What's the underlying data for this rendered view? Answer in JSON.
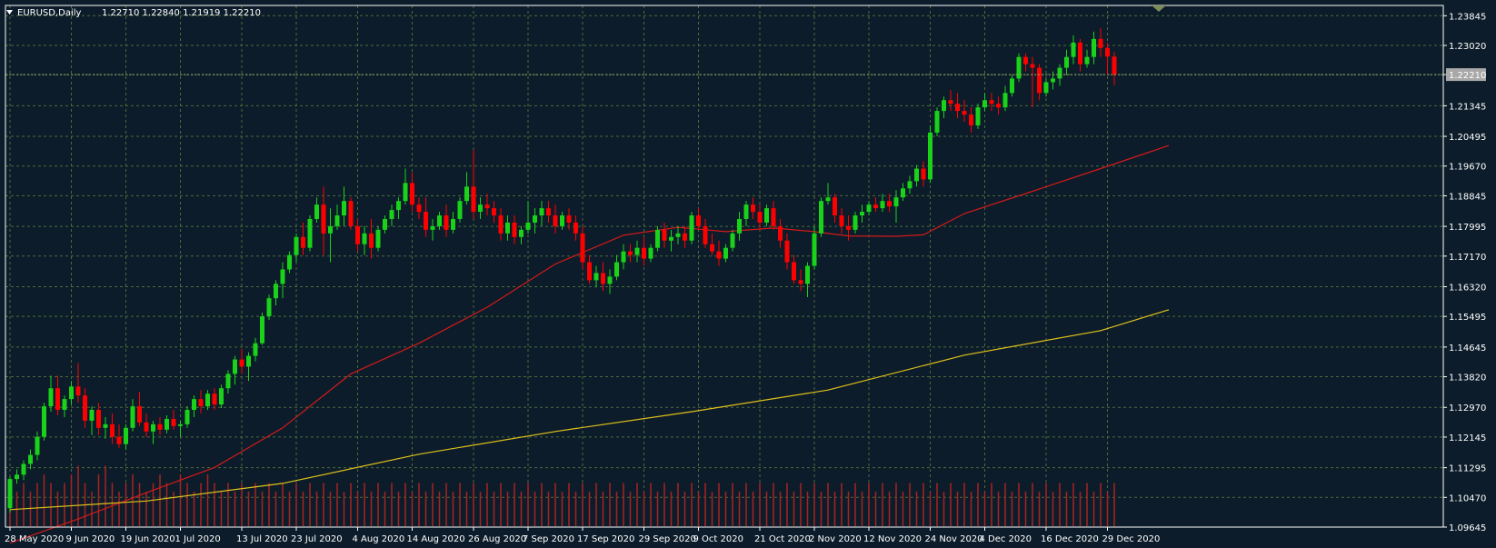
{
  "header": {
    "symbol": "EURUSD,Daily",
    "ohlc": "1.22710 1.22840 1.21919 1.22210"
  },
  "colors": {
    "background": "#0c1c2a",
    "grid": "#4e6b3a",
    "bull_candle": "#19d219",
    "bear_candle": "#ff0000",
    "volume": "#a8231f",
    "ma_short": "#d41a1a",
    "ma_long": "#e0c21a",
    "price_label_bg": "#a8a8a8",
    "price_label_text": "#000000",
    "text": "#ffffff"
  },
  "chart_data": {
    "type": "candlestick",
    "symbol": "EURUSD",
    "timeframe": "Daily",
    "last_price": "1.22210",
    "ylim": [
      1.09645,
      1.2413
    ],
    "y_ticks": [
      "1.23845",
      "1.23020",
      "1.22210",
      "1.21345",
      "1.20495",
      "1.19670",
      "1.18845",
      "1.17995",
      "1.17170",
      "1.16320",
      "1.15495",
      "1.14645",
      "1.13820",
      "1.12970",
      "1.12145",
      "1.11295",
      "1.10470",
      "1.09645"
    ],
    "x_ticks": [
      "28 May 2020",
      "9 Jun 2020",
      "19 Jun 2020",
      "1 Jul 2020",
      "13 Jul 2020",
      "23 Jul 2020",
      "4 Aug 2020",
      "14 Aug 2020",
      "26 Aug 2020",
      "7 Sep 2020",
      "17 Sep 2020",
      "29 Sep 2020",
      "9 Oct 2020",
      "21 Oct 2020",
      "2 Nov 2020",
      "12 Nov 2020",
      "24 Nov 2020",
      "4 Dec 2020",
      "16 Dec 2020",
      "29 Dec 2020"
    ],
    "x_tick_index": [
      0,
      9,
      17,
      25,
      34,
      42,
      51,
      59,
      68,
      76,
      84,
      93,
      101,
      110,
      118,
      126,
      135,
      143,
      152,
      161
    ],
    "ohlc": [
      [
        1.1017,
        1.1105,
        1.1005,
        1.1098
      ],
      [
        1.1098,
        1.1125,
        1.1085,
        1.111
      ],
      [
        1.111,
        1.115,
        1.1095,
        1.114
      ],
      [
        1.114,
        1.118,
        1.1125,
        1.1165
      ],
      [
        1.1165,
        1.123,
        1.115,
        1.1215
      ],
      [
        1.1215,
        1.131,
        1.1205,
        1.13
      ],
      [
        1.13,
        1.1385,
        1.1285,
        1.135
      ],
      [
        1.135,
        1.1385,
        1.1275,
        1.129
      ],
      [
        1.129,
        1.133,
        1.127,
        1.132
      ],
      [
        1.132,
        1.137,
        1.1305,
        1.1355
      ],
      [
        1.1355,
        1.142,
        1.131,
        1.133
      ],
      [
        1.133,
        1.135,
        1.124,
        1.126
      ],
      [
        1.126,
        1.13,
        1.122,
        1.129
      ],
      [
        1.129,
        1.131,
        1.122,
        1.124
      ],
      [
        1.124,
        1.127,
        1.121,
        1.125
      ],
      [
        1.125,
        1.128,
        1.1195,
        1.1215
      ],
      [
        1.1215,
        1.125,
        1.1185,
        1.1195
      ],
      [
        1.1195,
        1.125,
        1.118,
        1.124
      ],
      [
        1.124,
        1.132,
        1.123,
        1.13
      ],
      [
        1.13,
        1.134,
        1.1245,
        1.1255
      ],
      [
        1.1255,
        1.128,
        1.1215,
        1.123
      ],
      [
        1.123,
        1.126,
        1.1195,
        1.125
      ],
      [
        1.125,
        1.127,
        1.122,
        1.1235
      ],
      [
        1.1235,
        1.1275,
        1.1225,
        1.1265
      ],
      [
        1.1265,
        1.129,
        1.1235,
        1.1245
      ],
      [
        1.1245,
        1.126,
        1.1215,
        1.125
      ],
      [
        1.125,
        1.13,
        1.124,
        1.129
      ],
      [
        1.129,
        1.133,
        1.127,
        1.132
      ],
      [
        1.132,
        1.1345,
        1.128,
        1.13
      ],
      [
        1.13,
        1.1345,
        1.129,
        1.1335
      ],
      [
        1.1335,
        1.135,
        1.129,
        1.1305
      ],
      [
        1.1305,
        1.136,
        1.1295,
        1.135
      ],
      [
        1.135,
        1.14,
        1.1335,
        1.139
      ],
      [
        1.139,
        1.144,
        1.136,
        1.143
      ],
      [
        1.143,
        1.146,
        1.139,
        1.141
      ],
      [
        1.141,
        1.145,
        1.137,
        1.144
      ],
      [
        1.144,
        1.149,
        1.1425,
        1.1475
      ],
      [
        1.1475,
        1.156,
        1.147,
        1.155
      ],
      [
        1.155,
        1.161,
        1.154,
        1.16
      ],
      [
        1.16,
        1.165,
        1.158,
        1.164
      ],
      [
        1.164,
        1.17,
        1.16,
        1.168
      ],
      [
        1.168,
        1.173,
        1.167,
        1.172
      ],
      [
        1.172,
        1.178,
        1.17,
        1.177
      ],
      [
        1.177,
        1.181,
        1.172,
        1.174
      ],
      [
        1.174,
        1.183,
        1.173,
        1.182
      ],
      [
        1.182,
        1.188,
        1.181,
        1.186
      ],
      [
        1.186,
        1.191,
        1.172,
        1.178
      ],
      [
        1.178,
        1.185,
        1.17,
        1.18
      ],
      [
        1.18,
        1.186,
        1.179,
        1.183
      ],
      [
        1.183,
        1.191,
        1.18,
        1.187
      ],
      [
        1.187,
        1.188,
        1.179,
        1.18
      ],
      [
        1.18,
        1.182,
        1.173,
        1.175
      ],
      [
        1.175,
        1.18,
        1.172,
        1.178
      ],
      [
        1.178,
        1.182,
        1.171,
        1.174
      ],
      [
        1.174,
        1.18,
        1.173,
        1.179
      ],
      [
        1.179,
        1.183,
        1.178,
        1.182
      ],
      [
        1.182,
        1.186,
        1.18,
        1.1845
      ],
      [
        1.1845,
        1.188,
        1.182,
        1.187
      ],
      [
        1.187,
        1.196,
        1.186,
        1.192
      ],
      [
        1.192,
        1.195,
        1.184,
        1.186
      ],
      [
        1.186,
        1.188,
        1.182,
        1.184
      ],
      [
        1.184,
        1.188,
        1.177,
        1.179
      ],
      [
        1.179,
        1.182,
        1.176,
        1.18
      ],
      [
        1.18,
        1.184,
        1.179,
        1.183
      ],
      [
        1.183,
        1.186,
        1.177,
        1.179
      ],
      [
        1.179,
        1.184,
        1.178,
        1.182
      ],
      [
        1.182,
        1.188,
        1.181,
        1.187
      ],
      [
        1.187,
        1.195,
        1.186,
        1.191
      ],
      [
        1.191,
        1.2011,
        1.182,
        1.184
      ],
      [
        1.184,
        1.188,
        1.182,
        1.186
      ],
      [
        1.186,
        1.189,
        1.183,
        1.185
      ],
      [
        1.185,
        1.187,
        1.181,
        1.183
      ],
      [
        1.183,
        1.185,
        1.176,
        1.178
      ],
      [
        1.178,
        1.183,
        1.176,
        1.181
      ],
      [
        1.181,
        1.183,
        1.175,
        1.177
      ],
      [
        1.177,
        1.18,
        1.175,
        1.179
      ],
      [
        1.179,
        1.187,
        1.178,
        1.181
      ],
      [
        1.181,
        1.185,
        1.178,
        1.183
      ],
      [
        1.183,
        1.187,
        1.18,
        1.185
      ],
      [
        1.185,
        1.187,
        1.181,
        1.183
      ],
      [
        1.183,
        1.186,
        1.178,
        1.18
      ],
      [
        1.18,
        1.184,
        1.179,
        1.183
      ],
      [
        1.183,
        1.185,
        1.179,
        1.181
      ],
      [
        1.181,
        1.183,
        1.176,
        1.178
      ],
      [
        1.178,
        1.18,
        1.168,
        1.17
      ],
      [
        1.17,
        1.172,
        1.164,
        1.165
      ],
      [
        1.165,
        1.169,
        1.163,
        1.167
      ],
      [
        1.167,
        1.17,
        1.162,
        1.164
      ],
      [
        1.164,
        1.168,
        1.1612,
        1.166
      ],
      [
        1.166,
        1.172,
        1.165,
        1.17
      ],
      [
        1.17,
        1.175,
        1.168,
        1.173
      ],
      [
        1.173,
        1.175,
        1.17,
        1.172
      ],
      [
        1.172,
        1.176,
        1.17,
        1.174
      ],
      [
        1.174,
        1.177,
        1.169,
        1.171
      ],
      [
        1.171,
        1.175,
        1.17,
        1.174
      ],
      [
        1.174,
        1.18,
        1.173,
        1.179
      ],
      [
        1.179,
        1.181,
        1.174,
        1.176
      ],
      [
        1.176,
        1.179,
        1.173,
        1.177
      ],
      [
        1.177,
        1.18,
        1.175,
        1.178
      ],
      [
        1.178,
        1.18,
        1.174,
        1.176
      ],
      [
        1.176,
        1.184,
        1.175,
        1.183
      ],
      [
        1.183,
        1.185,
        1.179,
        1.18
      ],
      [
        1.18,
        1.182,
        1.174,
        1.175
      ],
      [
        1.175,
        1.178,
        1.172,
        1.173
      ],
      [
        1.173,
        1.176,
        1.169,
        1.171
      ],
      [
        1.171,
        1.175,
        1.17,
        1.174
      ],
      [
        1.174,
        1.179,
        1.173,
        1.178
      ],
      [
        1.178,
        1.184,
        1.176,
        1.182
      ],
      [
        1.182,
        1.187,
        1.18,
        1.186
      ],
      [
        1.186,
        1.188,
        1.182,
        1.184
      ],
      [
        1.184,
        1.186,
        1.179,
        1.181
      ],
      [
        1.181,
        1.186,
        1.18,
        1.185
      ],
      [
        1.185,
        1.187,
        1.179,
        1.18
      ],
      [
        1.18,
        1.182,
        1.174,
        1.176
      ],
      [
        1.176,
        1.178,
        1.168,
        1.17
      ],
      [
        1.17,
        1.172,
        1.164,
        1.165
      ],
      [
        1.165,
        1.168,
        1.162,
        1.164
      ],
      [
        1.164,
        1.17,
        1.1603,
        1.169
      ],
      [
        1.169,
        1.18,
        1.168,
        1.178
      ],
      [
        1.178,
        1.188,
        1.177,
        1.187
      ],
      [
        1.187,
        1.192,
        1.186,
        1.188
      ],
      [
        1.188,
        1.189,
        1.181,
        1.183
      ],
      [
        1.183,
        1.185,
        1.178,
        1.18
      ],
      [
        1.18,
        1.183,
        1.176,
        1.179
      ],
      [
        1.179,
        1.184,
        1.178,
        1.183
      ],
      [
        1.183,
        1.186,
        1.181,
        1.184
      ],
      [
        1.184,
        1.187,
        1.183,
        1.186
      ],
      [
        1.186,
        1.188,
        1.184,
        1.185
      ],
      [
        1.185,
        1.189,
        1.184,
        1.187
      ],
      [
        1.187,
        1.189,
        1.184,
        1.1855
      ],
      [
        1.1855,
        1.19,
        1.181,
        1.188
      ],
      [
        1.188,
        1.192,
        1.187,
        1.1905
      ],
      [
        1.1905,
        1.194,
        1.189,
        1.1925
      ],
      [
        1.1925,
        1.197,
        1.191,
        1.196
      ],
      [
        1.196,
        1.198,
        1.191,
        1.193
      ],
      [
        1.193,
        1.208,
        1.192,
        1.206
      ],
      [
        1.206,
        1.213,
        1.205,
        1.212
      ],
      [
        1.212,
        1.216,
        1.21,
        1.215
      ],
      [
        1.215,
        1.2178,
        1.212,
        1.214
      ],
      [
        1.214,
        1.217,
        1.21,
        1.212
      ],
      [
        1.212,
        1.215,
        1.209,
        1.211
      ],
      [
        1.211,
        1.213,
        1.206,
        1.208
      ],
      [
        1.208,
        1.214,
        1.207,
        1.213
      ],
      [
        1.213,
        1.217,
        1.212,
        1.215
      ],
      [
        1.215,
        1.217,
        1.212,
        1.214
      ],
      [
        1.214,
        1.216,
        1.211,
        1.213
      ],
      [
        1.213,
        1.219,
        1.212,
        1.217
      ],
      [
        1.217,
        1.222,
        1.216,
        1.221
      ],
      [
        1.221,
        1.228,
        1.22,
        1.227
      ],
      [
        1.227,
        1.228,
        1.223,
        1.225
      ],
      [
        1.225,
        1.227,
        1.213,
        1.224
      ],
      [
        1.224,
        1.225,
        1.215,
        1.217
      ],
      [
        1.217,
        1.221,
        1.216,
        1.22
      ],
      [
        1.22,
        1.223,
        1.218,
        1.221
      ],
      [
        1.221,
        1.225,
        1.219,
        1.224
      ],
      [
        1.224,
        1.229,
        1.222,
        1.227
      ],
      [
        1.227,
        1.233,
        1.225,
        1.231
      ],
      [
        1.231,
        1.232,
        1.223,
        1.225
      ],
      [
        1.225,
        1.229,
        1.224,
        1.227
      ],
      [
        1.227,
        1.234,
        1.225,
        1.232
      ],
      [
        1.232,
        1.235,
        1.227,
        1.2295
      ],
      [
        1.2295,
        1.231,
        1.222,
        1.2271
      ],
      [
        1.2271,
        1.2284,
        1.2192,
        1.2221
      ]
    ],
    "ma_short": [
      [
        0,
        1.092
      ],
      [
        10,
        1.0987
      ],
      [
        20,
        1.106
      ],
      [
        30,
        1.113
      ],
      [
        40,
        1.124
      ],
      [
        50,
        1.139
      ],
      [
        60,
        1.1475
      ],
      [
        70,
        1.1575
      ],
      [
        80,
        1.1695
      ],
      [
        90,
        1.1775
      ],
      [
        98,
        1.1797
      ],
      [
        105,
        1.1785
      ],
      [
        112,
        1.1795
      ],
      [
        118,
        1.1785
      ],
      [
        123,
        1.1773
      ],
      [
        130,
        1.1772
      ],
      [
        134,
        1.1776
      ],
      [
        140,
        1.1835
      ],
      [
        150,
        1.1897
      ],
      [
        160,
        1.196
      ],
      [
        170,
        1.2024
      ]
    ],
    "ma_long": [
      [
        0,
        1.1013
      ],
      [
        20,
        1.1037
      ],
      [
        40,
        1.1086
      ],
      [
        60,
        1.1167
      ],
      [
        80,
        1.123
      ],
      [
        100,
        1.1285
      ],
      [
        120,
        1.1345
      ],
      [
        140,
        1.1442
      ],
      [
        160,
        1.151
      ],
      [
        170,
        1.1568
      ]
    ],
    "volume": [
      0.3,
      0.4,
      0.5,
      0.4,
      0.5,
      0.6,
      0.5,
      0.4,
      0.5,
      0.6,
      0.7,
      0.5,
      0.4,
      0.6,
      0.7,
      0.5,
      0.4,
      0.5,
      0.6,
      0.5,
      0.4,
      0.5,
      0.6,
      0.5,
      0.4,
      0.6,
      0.5,
      0.4,
      0.5,
      0.6,
      0.5,
      0.4,
      0.5,
      0.4,
      0.5,
      0.4,
      0.5,
      0.4,
      0.5,
      0.4,
      0.5,
      0.4,
      0.5,
      0.4,
      0.5,
      0.4,
      0.5,
      0.4,
      0.5,
      0.4,
      0.5,
      0.4,
      0.5,
      0.4,
      0.5,
      0.4,
      0.5,
      0.4,
      0.5,
      0.4,
      0.5,
      0.4,
      0.5,
      0.4,
      0.5,
      0.4,
      0.5,
      0.4,
      0.5,
      0.4,
      0.5,
      0.4,
      0.5,
      0.4,
      0.5,
      0.4,
      0.5,
      0.4,
      0.5,
      0.4,
      0.5,
      0.4,
      0.5,
      0.4,
      0.5,
      0.4,
      0.5,
      0.4,
      0.5,
      0.4,
      0.5,
      0.4,
      0.5,
      0.4,
      0.5,
      0.4,
      0.5,
      0.4,
      0.5,
      0.4,
      0.5,
      0.4,
      0.5,
      0.4,
      0.5,
      0.4,
      0.5,
      0.4,
      0.5,
      0.4,
      0.5,
      0.4,
      0.5,
      0.4,
      0.5,
      0.4,
      0.5,
      0.4,
      0.5,
      0.4,
      0.5,
      0.4,
      0.5,
      0.4,
      0.5,
      0.4,
      0.5,
      0.4,
      0.5,
      0.4,
      0.5,
      0.4,
      0.5,
      0.4,
      0.5,
      0.4,
      0.5,
      0.4,
      0.5,
      0.4,
      0.5,
      0.4,
      0.5,
      0.4,
      0.5,
      0.4,
      0.5,
      0.4,
      0.5,
      0.4,
      0.5,
      0.4,
      0.5,
      0.4,
      0.5,
      0.4,
      0.5,
      0.4,
      0.5,
      0.4,
      0.5,
      0.4,
      0.5,
      0.4,
      0.5,
      0.4,
      0.5,
      0.4,
      0.5
    ],
    "grid": true
  }
}
